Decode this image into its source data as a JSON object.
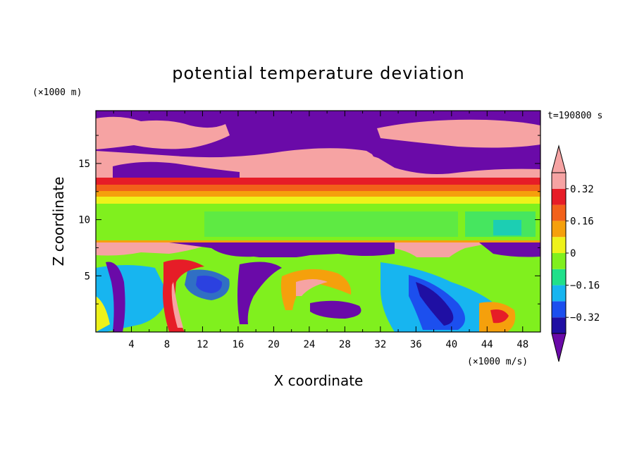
{
  "chart_data": {
    "type": "heatmap",
    "title": "potential temperature deviation",
    "xlabel": "X coordinate",
    "ylabel": "Z coordinate",
    "x_unit": "(×1000 m/s)",
    "y_unit": "(×1000 m)",
    "time_label": "t=190800 s",
    "xlim": [
      0,
      50
    ],
    "ylim": [
      0,
      19.7
    ],
    "x_ticks": [
      4,
      8,
      12,
      16,
      20,
      24,
      28,
      32,
      36,
      40,
      44,
      48
    ],
    "x_minor_ticks": [
      2,
      6,
      10,
      14,
      18,
      22,
      26,
      30,
      34,
      38,
      42,
      46,
      50
    ],
    "y_ticks": [
      5,
      10,
      15
    ],
    "y_minor_ticks": [
      2.5,
      7.5,
      12.5,
      17.5
    ],
    "colorbar": {
      "levels": [
        -0.4,
        -0.32,
        -0.24,
        -0.16,
        -0.08,
        0,
        0.08,
        0.16,
        0.24,
        0.32,
        0.4
      ],
      "labeled_levels": [
        "0.32",
        "0.16",
        "0",
        "−0.16",
        "−0.32"
      ],
      "labeled_values": [
        0.32,
        0.16,
        0,
        -0.16,
        -0.32
      ],
      "colors": [
        "#6a0aa8",
        "#1f0fa3",
        "#1c4fee",
        "#17b5f0",
        "#20e08a",
        "#80f01e",
        "#eef21a",
        "#f5a00c",
        "#f2611a",
        "#e61d27",
        "#f6a3a3"
      ],
      "extend": "both"
    }
  }
}
